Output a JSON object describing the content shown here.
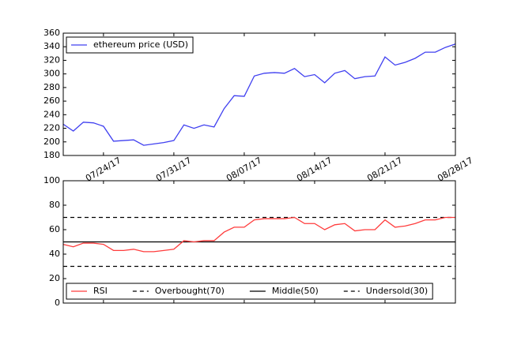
{
  "chart_data": [
    {
      "type": "line",
      "legend": "upper left",
      "x": [
        "07/20/17",
        "07/21/17",
        "07/22/17",
        "07/23/17",
        "07/24/17",
        "07/25/17",
        "07/26/17",
        "07/27/17",
        "07/28/17",
        "07/29/17",
        "07/30/17",
        "07/31/17",
        "08/01/17",
        "08/02/17",
        "08/03/17",
        "08/04/17",
        "08/05/17",
        "08/06/17",
        "08/07/17",
        "08/08/17",
        "08/09/17",
        "08/10/17",
        "08/11/17",
        "08/12/17",
        "08/13/17",
        "08/14/17",
        "08/15/17",
        "08/16/17",
        "08/17/17",
        "08/18/17",
        "08/19/17",
        "08/20/17",
        "08/21/17",
        "08/22/17",
        "08/23/17",
        "08/24/17",
        "08/25/17",
        "08/26/17",
        "08/27/17",
        "08/28/17"
      ],
      "xticks": [
        "07/24/17",
        "07/31/17",
        "08/07/17",
        "08/14/17",
        "08/21/17",
        "08/28/17"
      ],
      "ylim": [
        180,
        360
      ],
      "yticks": [
        180,
        200,
        220,
        240,
        260,
        280,
        300,
        320,
        340,
        360
      ],
      "series": [
        {
          "name": "ethereum price (USD)",
          "color": "#4040f0",
          "values": [
            226,
            216,
            229,
            228,
            223,
            201,
            202,
            203,
            195,
            197,
            199,
            202,
            225,
            220,
            225,
            222,
            249,
            268,
            267,
            297,
            301,
            302,
            301,
            308,
            296,
            299,
            287,
            301,
            305,
            293,
            296,
            297,
            325,
            313,
            317,
            323,
            332,
            332,
            339,
            344
          ]
        }
      ]
    },
    {
      "type": "line",
      "legend": "lower left",
      "ylim": [
        0,
        100
      ],
      "yticks": [
        0,
        20,
        40,
        60,
        80,
        100
      ],
      "series": [
        {
          "name": "RSI",
          "color": "#ff3c3c",
          "values": [
            48,
            46,
            49,
            49,
            48,
            43,
            43,
            44,
            42,
            42,
            43,
            44,
            51,
            50,
            51,
            51,
            58,
            62,
            62,
            68,
            69,
            69,
            69,
            70,
            65,
            65,
            60,
            64,
            65,
            59,
            60,
            60,
            68,
            62,
            63,
            65,
            68,
            68,
            70,
            70
          ]
        }
      ],
      "hlines": [
        {
          "name": "Overbought(70)",
          "value": 70,
          "color": "#000000",
          "dash": "dashed"
        },
        {
          "name": "Middle(50)",
          "value": 50,
          "color": "#000000",
          "dash": "solid"
        },
        {
          "name": "Undersold(30)",
          "value": 30,
          "color": "#000000",
          "dash": "dashed"
        }
      ]
    }
  ]
}
